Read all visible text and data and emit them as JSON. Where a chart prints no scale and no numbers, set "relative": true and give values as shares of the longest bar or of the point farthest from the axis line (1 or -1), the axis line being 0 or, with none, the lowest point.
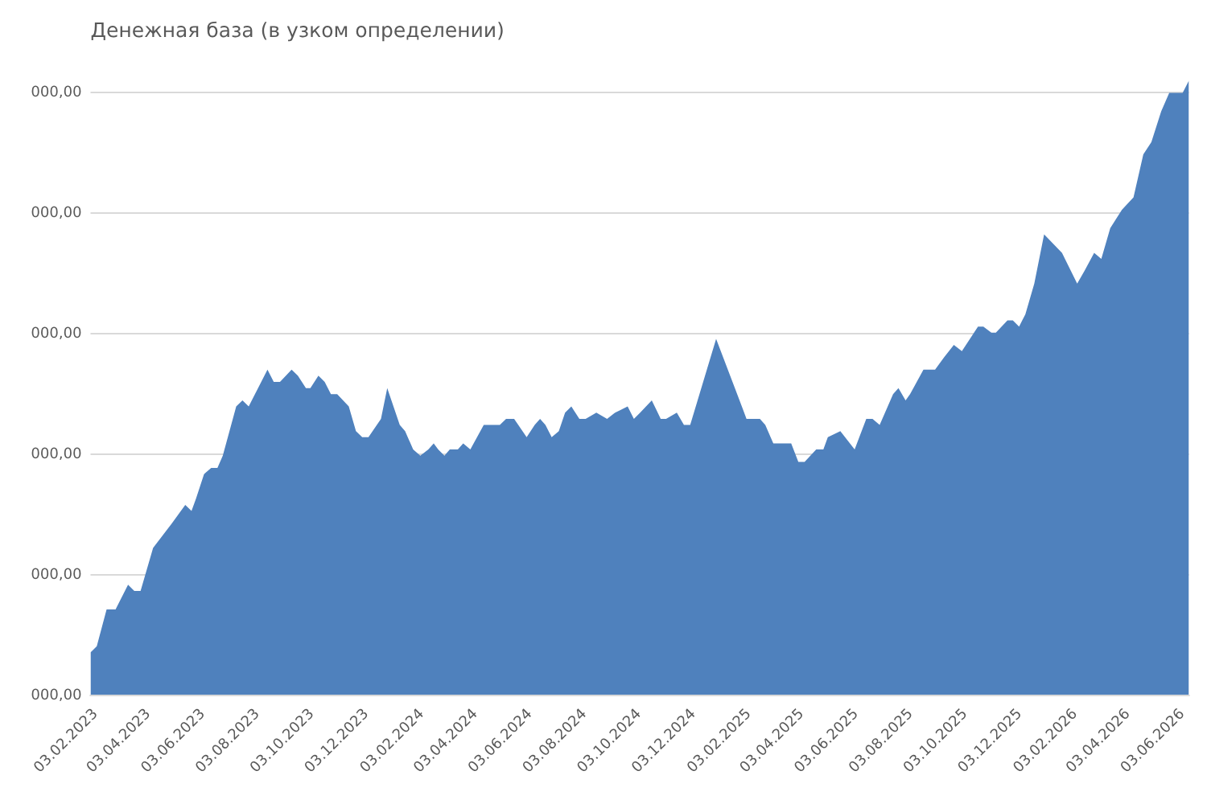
{
  "chart_data": {
    "type": "area",
    "title": "Денежная база (в узком определении)",
    "x": [
      "2023-02-03",
      "2023-02-10",
      "2023-02-21",
      "2023-03-03",
      "2023-03-17",
      "2023-03-24",
      "2023-03-31",
      "2023-04-14",
      "2023-05-05",
      "2023-05-20",
      "2023-05-27",
      "2023-06-01",
      "2023-06-10",
      "2023-06-18",
      "2023-06-25",
      "2023-07-01",
      "2023-07-16",
      "2023-07-23",
      "2023-07-30",
      "2023-08-20",
      "2023-08-27",
      "2023-09-03",
      "2023-09-16",
      "2023-09-23",
      "2023-10-02",
      "2023-10-07",
      "2023-10-16",
      "2023-10-23",
      "2023-10-30",
      "2023-11-06",
      "2023-11-19",
      "2023-11-27",
      "2023-12-04",
      "2023-12-11",
      "2023-12-25",
      "2024-01-01",
      "2024-01-15",
      "2024-01-21",
      "2024-01-30",
      "2024-02-07",
      "2024-02-16",
      "2024-02-22",
      "2024-02-27",
      "2024-03-05",
      "2024-03-11",
      "2024-03-20",
      "2024-03-26",
      "2024-04-03",
      "2024-04-18",
      "2024-04-24",
      "2024-05-06",
      "2024-05-13",
      "2024-05-22",
      "2024-06-05",
      "2024-06-14",
      "2024-06-20",
      "2024-06-26",
      "2024-07-03",
      "2024-07-11",
      "2024-07-18",
      "2024-07-25",
      "2024-08-03",
      "2024-08-10",
      "2024-08-22",
      "2024-09-03",
      "2024-09-12",
      "2024-09-26",
      "2024-10-03",
      "2024-10-10",
      "2024-10-23",
      "2024-11-02",
      "2024-11-08",
      "2024-11-20",
      "2024-11-28",
      "2024-12-05",
      "2025-01-03",
      "2025-01-24",
      "2025-02-06",
      "2025-02-21",
      "2025-02-27",
      "2025-03-08",
      "2025-03-28",
      "2025-04-05",
      "2025-04-12",
      "2025-04-25",
      "2025-05-03",
      "2025-05-08",
      "2025-05-22",
      "2025-06-07",
      "2025-06-20",
      "2025-06-27",
      "2025-07-05",
      "2025-07-20",
      "2025-07-26",
      "2025-08-03",
      "2025-08-08",
      "2025-08-23",
      "2025-09-05",
      "2025-09-15",
      "2025-09-26",
      "2025-10-05",
      "2025-10-23",
      "2025-10-29",
      "2025-11-07",
      "2025-11-12",
      "2025-11-25",
      "2025-12-01",
      "2025-12-08",
      "2025-12-15",
      "2025-12-25",
      "2026-01-05",
      "2026-01-25",
      "2026-02-11",
      "2026-02-19",
      "2026-03-02",
      "2026-03-10",
      "2026-03-20",
      "2026-04-02",
      "2026-04-15",
      "2026-04-26",
      "2026-05-05",
      "2026-05-16",
      "2026-05-25",
      "2026-06-02",
      "2026-06-09",
      "2026-06-16"
    ],
    "series": [
      {
        "color": "#4f81bd",
        "values": [
          0.07,
          0.08,
          0.14,
          0.14,
          0.18,
          0.17,
          0.17,
          0.24,
          0.28,
          0.31,
          0.3,
          0.32,
          0.36,
          0.37,
          0.37,
          0.39,
          0.47,
          0.48,
          0.47,
          0.53,
          0.51,
          0.51,
          0.53,
          0.52,
          0.5,
          0.5,
          0.52,
          0.51,
          0.49,
          0.49,
          0.47,
          0.43,
          0.42,
          0.42,
          0.45,
          0.5,
          0.44,
          0.43,
          0.4,
          0.39,
          0.4,
          0.41,
          0.4,
          0.39,
          0.4,
          0.4,
          0.41,
          0.4,
          0.44,
          0.44,
          0.44,
          0.45,
          0.45,
          0.42,
          0.44,
          0.45,
          0.44,
          0.42,
          0.43,
          0.46,
          0.47,
          0.45,
          0.45,
          0.46,
          0.45,
          0.46,
          0.47,
          0.45,
          0.46,
          0.48,
          0.45,
          0.45,
          0.46,
          0.44,
          0.44,
          0.58,
          0.5,
          0.45,
          0.45,
          0.44,
          0.41,
          0.41,
          0.38,
          0.38,
          0.4,
          0.4,
          0.42,
          0.43,
          0.4,
          0.45,
          0.45,
          0.44,
          0.49,
          0.5,
          0.48,
          0.49,
          0.53,
          0.53,
          0.55,
          0.57,
          0.56,
          0.6,
          0.6,
          0.59,
          0.59,
          0.61,
          0.61,
          0.6,
          0.62,
          0.67,
          0.75,
          0.72,
          0.67,
          0.69,
          0.72,
          0.71,
          0.76,
          0.79,
          0.81,
          0.88,
          0.9,
          0.95,
          0.98,
          0.98,
          0.98,
          1
        ]
      }
    ],
    "relative": true,
    "annotations": [
      "000,00",
      "000,00",
      "000,00",
      "000,00",
      "000,00",
      "000,00"
    ],
    "xlim": [
      "2023-02-03",
      "2026-06-16"
    ],
    "xticks": [
      {
        "value": "2023-02-03",
        "label": "03.02.2023"
      },
      {
        "value": "2023-04-03",
        "label": "03.04.2023"
      },
      {
        "value": "2023-06-03",
        "label": "03.06.2023"
      },
      {
        "value": "2023-08-03",
        "label": "03.08.2023"
      },
      {
        "value": "2023-10-03",
        "label": "03.10.2023"
      },
      {
        "value": "2023-12-03",
        "label": "03.12.2023"
      },
      {
        "value": "2024-02-03",
        "label": "03.02.2024"
      },
      {
        "value": "2024-04-03",
        "label": "03.04.2024"
      },
      {
        "value": "2024-06-03",
        "label": "03.06.2024"
      },
      {
        "value": "2024-08-03",
        "label": "03.08.2024"
      },
      {
        "value": "2024-10-03",
        "label": "03.10.2024"
      },
      {
        "value": "2024-12-03",
        "label": "03.12.2024"
      },
      {
        "value": "2025-02-03",
        "label": "03.02.2025"
      },
      {
        "value": "2025-04-03",
        "label": "03.04.2025"
      },
      {
        "value": "2025-06-03",
        "label": "03.06.2025"
      },
      {
        "value": "2025-08-03",
        "label": "03.08.2025"
      },
      {
        "value": "2025-10-03",
        "label": "03.10.2025"
      },
      {
        "value": "2025-12-03",
        "label": "03.12.2025"
      },
      {
        "value": "2026-02-03",
        "label": "03.02.2026"
      },
      {
        "value": "2026-04-03",
        "label": "03.04.2026"
      },
      {
        "value": "2026-06-03",
        "label": "03.06.2026"
      }
    ],
    "grid": "y"
  }
}
